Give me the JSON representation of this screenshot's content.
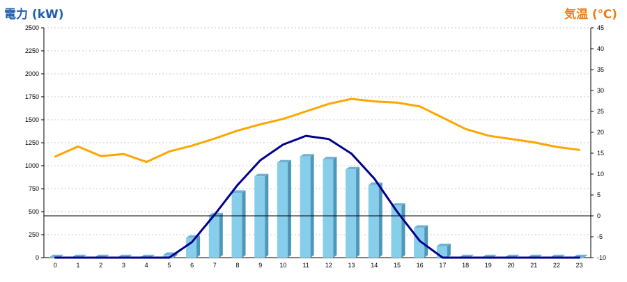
{
  "chart_data": {
    "type": "bar",
    "left_axis_title": "電力 (kW)",
    "right_axis_title": "気温 (℃)",
    "left_ylim": [
      0,
      2500
    ],
    "left_ticks": [
      "0",
      "250",
      "500",
      "750",
      "1000",
      "1250",
      "1500",
      "1750",
      "2000",
      "2250",
      "2500"
    ],
    "right_ylim": [
      -10,
      45
    ],
    "right_ticks": [
      "-10",
      "-5",
      "0",
      "5",
      "10",
      "15",
      "20",
      "25",
      "30",
      "35",
      "40",
      "45"
    ],
    "categories": [
      "0",
      "1",
      "2",
      "3",
      "4",
      "5",
      "6",
      "7",
      "8",
      "9",
      "10",
      "11",
      "12",
      "13",
      "14",
      "15",
      "16",
      "17",
      "18",
      "19",
      "20",
      "21",
      "22",
      "23"
    ],
    "grid": true,
    "series": [
      {
        "type": "bar",
        "axis": "left",
        "color": "#87ceeb",
        "values": [
          5,
          5,
          5,
          5,
          5,
          30,
          215,
          460,
          705,
          885,
          1035,
          1100,
          1070,
          960,
          790,
          565,
          325,
          125,
          5,
          5,
          5,
          5,
          5,
          5
        ]
      },
      {
        "type": "line",
        "axis": "left",
        "color": "#00008b",
        "values": [
          0,
          0,
          0,
          0,
          0,
          0,
          170,
          470,
          790,
          1060,
          1230,
          1325,
          1290,
          1130,
          860,
          500,
          180,
          0,
          0,
          0,
          0,
          0,
          0,
          0
        ]
      },
      {
        "type": "line",
        "axis": "right",
        "color": "#ffa500",
        "values": [
          14.2,
          16.6,
          14.3,
          14.8,
          12.9,
          15.4,
          16.8,
          18.5,
          20.4,
          21.9,
          23.2,
          25.0,
          26.8,
          28.0,
          27.4,
          27.1,
          26.2,
          23.5,
          20.8,
          19.2,
          18.4,
          17.6,
          16.5,
          15.8
        ]
      }
    ],
    "reference_line": {
      "axis": "right",
      "value": 0,
      "color": "#000000"
    }
  }
}
